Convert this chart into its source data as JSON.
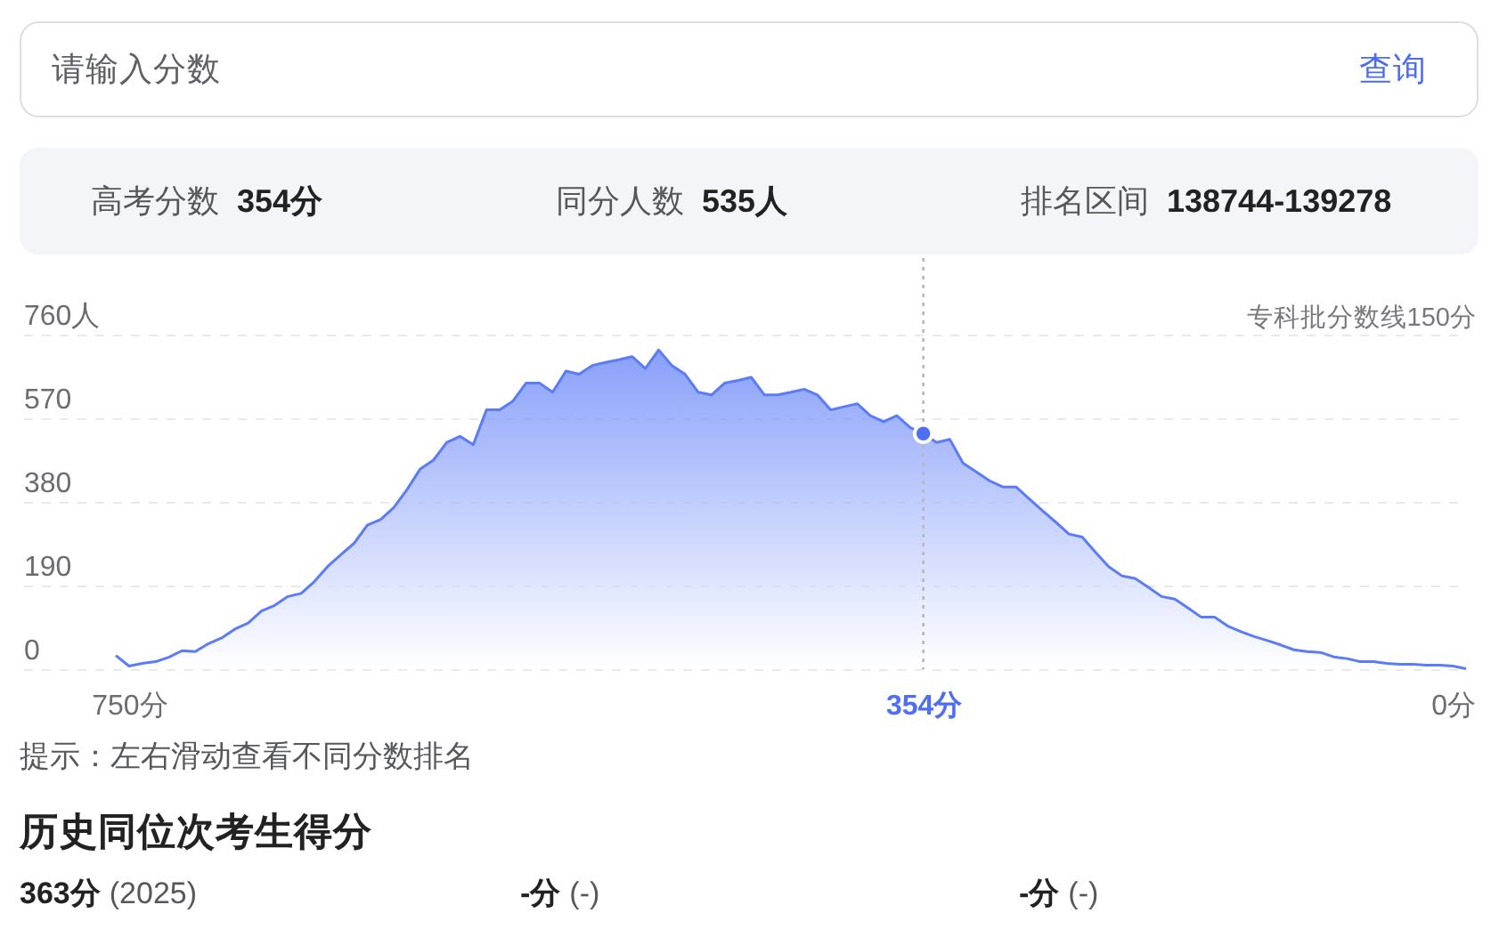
{
  "chart_data": {
    "type": "area",
    "categories": [
      null,
      "750分",
      null,
      null,
      null,
      null,
      null,
      null,
      null,
      null,
      null,
      null,
      null,
      null,
      null,
      null,
      null,
      null,
      null,
      null,
      null,
      null,
      null,
      null,
      null,
      null,
      null,
      null,
      null,
      null,
      null,
      null,
      null,
      null,
      null,
      null,
      null,
      null,
      null,
      null,
      null,
      null,
      null,
      null,
      null,
      null,
      null,
      null,
      null,
      null,
      null,
      null,
      null,
      null,
      null,
      null,
      null,
      null,
      null,
      null,
      null,
      "354分",
      null,
      null,
      null,
      null,
      null,
      null,
      null,
      null,
      null,
      null,
      null,
      null,
      null,
      null,
      null,
      null,
      null,
      null,
      null,
      null,
      null,
      null,
      null,
      null,
      null,
      null,
      null,
      null,
      null,
      null,
      null,
      null,
      null,
      null,
      null,
      null,
      null,
      null,
      null,
      "0分",
      null
    ],
    "series": [
      {
        "color": "#5b7bf8",
        "values": [
          31,
          7,
          13,
          17,
          27,
          42,
          40,
          58,
          71,
          91,
          105,
          132,
          145,
          165,
          172,
          199,
          233,
          260,
          286,
          327,
          340,
          367,
          408,
          455,
          475,
          515,
          529,
          510,
          589,
          589,
          609,
          650,
          650,
          629,
          677,
          670,
          690,
          697,
          703,
          710,
          683,
          725,
          690,
          670,
          629,
          623,
          650,
          656,
          663,
          623,
          623,
          629,
          636,
          623,
          589,
          596,
          603,
          576,
          562,
          576,
          549,
          535,
          515,
          522,
          468,
          448,
          428,
          414,
          414,
          387,
          360,
          334,
          307,
          300,
          266,
          233,
          212,
          206,
          186,
          165,
          159,
          139,
          118,
          118,
          98,
          85,
          74,
          65,
          55,
          44,
          40,
          38,
          28,
          24,
          17,
          17,
          13,
          11,
          11,
          9,
          9,
          7,
          1
        ]
      },
      {
        "type": "scatter",
        "x": [
          "354分"
        ],
        "values": [
          535
        ],
        "color": "#4d6ef5",
        "marker": "circle"
      }
    ],
    "ylim": [
      0,
      760
    ],
    "yticks": [
      0,
      190,
      380,
      570,
      {
        "value": 760,
        "label": "760人"
      }
    ],
    "grid": "y",
    "ref_lines": [
      {
        "axis": "x",
        "value": "354分",
        "color": "#b8b8b8",
        "line_style": "dotted"
      }
    ],
    "annotations": [
      "请输入分数",
      "查询",
      "高考分数",
      "354分",
      "同分人数",
      "535人",
      "排名区间",
      "138744-139278",
      "专科批分数线150分",
      "提示：左右滑动查看不同分数排名",
      "历史同位次考生得分",
      "363分",
      "(2025)",
      "-分",
      "(-)",
      "-分",
      "(-)"
    ]
  }
}
